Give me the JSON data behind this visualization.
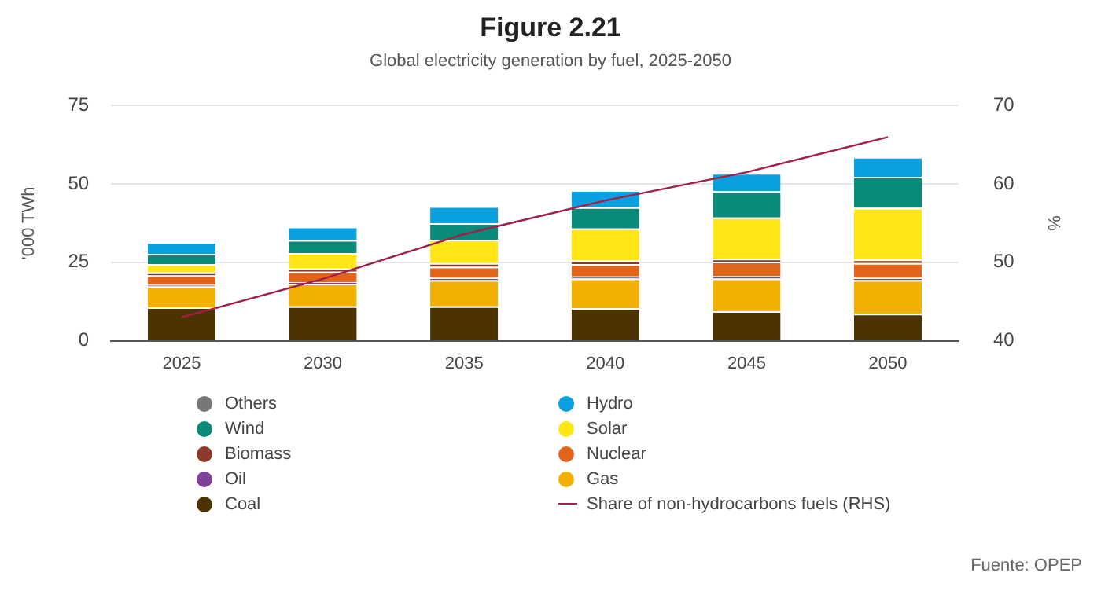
{
  "chart_data": {
    "type": "bar",
    "title": "Figure 2.21",
    "subtitle": "Global electricity generation by fuel, 2025-2050",
    "ylabel": "'000 TWh",
    "y2label": "%",
    "categories": [
      "2025",
      "2030",
      "2035",
      "2040",
      "2045",
      "2050"
    ],
    "stacked": true,
    "ylim": [
      0,
      75
    ],
    "yticks": [
      0,
      25,
      50,
      75
    ],
    "y2lim": [
      40,
      70
    ],
    "y2ticks": [
      40,
      50,
      60,
      70
    ],
    "grid": "y",
    "legend": "bottom",
    "annotations": [
      "Fuente: OPEP"
    ],
    "series": [
      {
        "name": "Coal",
        "color": "#4d3300",
        "values": [
          10.7,
          11,
          11,
          10.4,
          9.4,
          8.6
        ]
      },
      {
        "name": "Gas",
        "color": "#f2b100",
        "values": [
          6.6,
          7.2,
          8.3,
          9.4,
          10.4,
          10.7
        ]
      },
      {
        "name": "Oil",
        "color": "#7e3f98",
        "values": [
          0.5,
          0.5,
          0.8,
          0.7,
          0.8,
          0.8
        ]
      },
      {
        "name": "Nuclear",
        "color": "#e2641a",
        "values": [
          3,
          3.3,
          3.5,
          3.9,
          4.6,
          4.7
        ]
      },
      {
        "name": "Biomass",
        "color": "#8b3a2a",
        "values": [
          1,
          1,
          1.2,
          1.2,
          0.9,
          1.1
        ]
      },
      {
        "name": "Solar",
        "color": "#ffe614",
        "values": [
          2.6,
          5,
          7.4,
          10.2,
          13.2,
          16.5
        ]
      },
      {
        "name": "Wind",
        "color": "#0a8a78",
        "values": [
          3.3,
          4.1,
          5.3,
          6.8,
          8.4,
          9.9
        ]
      },
      {
        "name": "Hydro",
        "color": "#0aa0e0",
        "values": [
          3.8,
          4.3,
          5.4,
          5.4,
          5.8,
          6.3
        ]
      },
      {
        "name": "Others",
        "color": "#777777",
        "values": [
          null,
          null,
          null,
          null,
          null,
          null
        ]
      },
      {
        "name": "Share of non-hydrocarbons fuels (RHS)",
        "type": "line",
        "axis": "y2",
        "color": "#a0204a",
        "marker": "none",
        "values": [
          43,
          47.9,
          53.6,
          57.9,
          61.5,
          66
        ]
      }
    ]
  }
}
